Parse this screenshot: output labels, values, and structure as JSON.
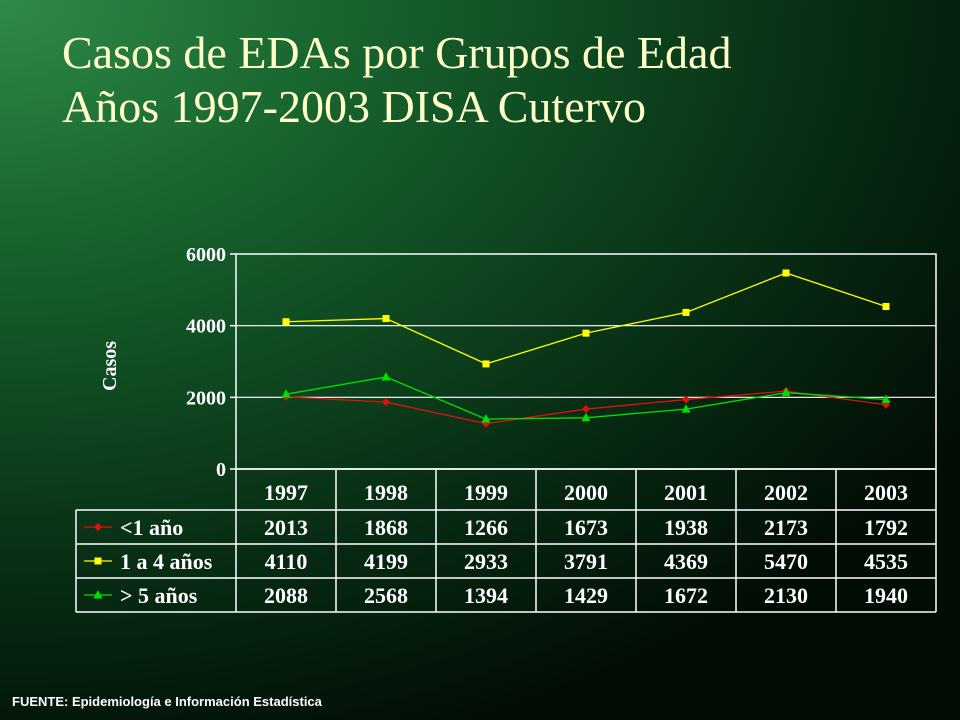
{
  "title_line1": "Casos de EDAs por Grupos de Edad",
  "title_line2": "Años 1997-2003 DISA Cutervo",
  "source": "FUENTE: Epidemiología e Información Estadística",
  "chart_data": {
    "type": "line",
    "title": "Casos de EDAs por Grupos de Edad Años 1997-2003 DISA Cutervo",
    "xlabel": "",
    "ylabel": "Casos",
    "ylim": [
      0,
      6000
    ],
    "yticks": [
      0,
      2000,
      4000,
      6000
    ],
    "grid": true,
    "legend": "data-table-left",
    "categories": [
      "1997",
      "1998",
      "1999",
      "2000",
      "2001",
      "2002",
      "2003"
    ],
    "series": [
      {
        "name": "<1 año",
        "color": "#e01010",
        "marker": "diamond",
        "values": [
          2013,
          1868,
          1266,
          1673,
          1938,
          2173,
          1792
        ]
      },
      {
        "name": "1 a 4 años",
        "color": "#ffff00",
        "marker": "square",
        "values": [
          4110,
          4199,
          2933,
          3791,
          4369,
          5470,
          4535
        ]
      },
      {
        "name": "> 5 años",
        "color": "#00e000",
        "marker": "triangle",
        "values": [
          2088,
          2568,
          1394,
          1429,
          1672,
          2130,
          1940
        ]
      }
    ]
  }
}
